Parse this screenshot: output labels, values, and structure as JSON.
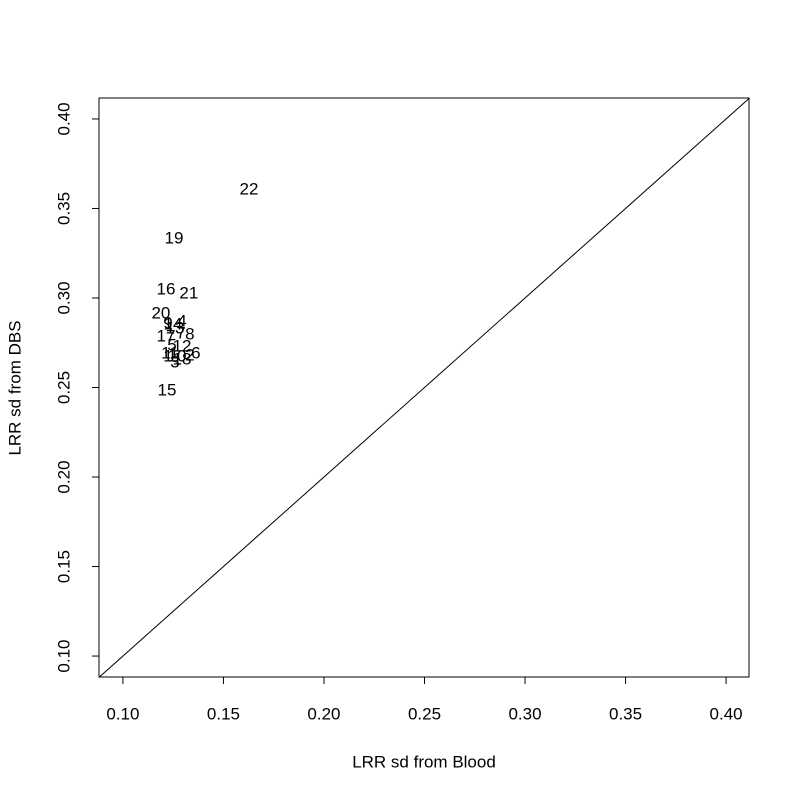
{
  "chart_data": {
    "type": "scatter",
    "x_label": "LRR sd from Blood",
    "y_label": "LRR sd from DBS",
    "labels": [
      "1",
      "2",
      "3",
      "4",
      "5",
      "6",
      "7",
      "8",
      "9",
      "10",
      "11",
      "12",
      "13",
      "14",
      "15",
      "16",
      "17",
      "18",
      "19",
      "20",
      "21",
      "22"
    ],
    "x": [
      0.1224,
      0.1333,
      0.1259,
      0.1294,
      0.1244,
      0.1363,
      0.1289,
      0.1333,
      0.1224,
      0.1269,
      0.1234,
      0.1294,
      0.1259,
      0.1249,
      0.1219,
      0.1214,
      0.1214,
      0.1294,
      0.1254,
      0.1189,
      0.1328,
      0.1627
    ],
    "y": [
      0.267,
      0.2676,
      0.2637,
      0.2866,
      0.2732,
      0.2687,
      0.2799,
      0.2793,
      0.2855,
      0.267,
      0.2687,
      0.2726,
      0.2827,
      0.2849,
      0.248,
      0.3045,
      0.2782,
      0.2654,
      0.333,
      0.2911,
      0.3022,
      0.3603
    ],
    "color": "#000000",
    "xlim": [
      0.0881,
      0.4114
    ],
    "ylim": [
      0.0883,
      0.4117
    ],
    "xticks": [
      {
        "value": 0.1,
        "label": "0.10"
      },
      {
        "value": 0.15,
        "label": "0.15"
      },
      {
        "value": 0.2,
        "label": "0.20"
      },
      {
        "value": 0.25,
        "label": "0.25"
      },
      {
        "value": 0.3,
        "label": "0.30"
      },
      {
        "value": 0.35,
        "label": "0.35"
      },
      {
        "value": 0.4,
        "label": "0.40"
      }
    ],
    "yticks": [
      {
        "value": 0.1,
        "label": "0.10"
      },
      {
        "value": 0.15,
        "label": "0.15"
      },
      {
        "value": 0.2,
        "label": "0.20"
      },
      {
        "value": 0.25,
        "label": "0.25"
      },
      {
        "value": 0.3,
        "label": "0.30"
      },
      {
        "value": 0.35,
        "label": "0.35"
      },
      {
        "value": 0.4,
        "label": "0.40"
      }
    ],
    "identity_line": true
  }
}
